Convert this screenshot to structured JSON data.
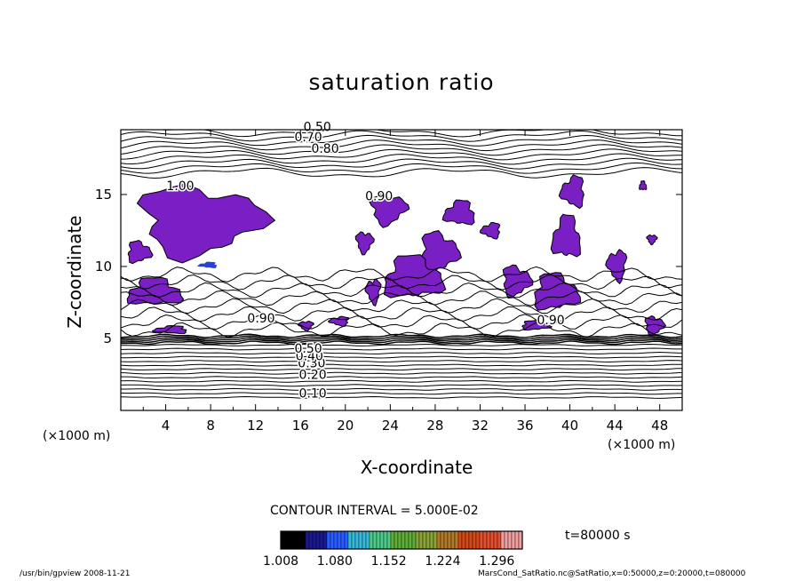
{
  "chart_data": {
    "type": "contour",
    "title": "saturation ratio",
    "xlabel": "X-coordinate",
    "ylabel": "Z-coordinate",
    "x_unit": "(×1000 m)",
    "y_unit": "(×1000 m)",
    "xlim": [
      0,
      50
    ],
    "ylim": [
      0,
      19.5
    ],
    "x_ticks": [
      4,
      8,
      12,
      16,
      20,
      24,
      28,
      32,
      36,
      40,
      44,
      48
    ],
    "y_ticks": [
      5,
      10,
      15
    ],
    "contour_interval_text": "CONTOUR INTERVAL = 5.000E-02",
    "time_text": "t=80000 s",
    "shaded_regions_color": "#7a1fc4",
    "contour_labels": [
      {
        "text": "0.10",
        "x": 17.1,
        "z": 0.9
      },
      {
        "text": "0.20",
        "x": 17.1,
        "z": 2.2
      },
      {
        "text": "0.30",
        "x": 17.0,
        "z": 3.0
      },
      {
        "text": "0.40",
        "x": 16.8,
        "z": 3.5
      },
      {
        "text": "0.50",
        "x": 16.7,
        "z": 4.0
      },
      {
        "text": "0.90",
        "x": 12.5,
        "z": 6.1
      },
      {
        "text": "0.90",
        "x": 23.0,
        "z": 14.6
      },
      {
        "text": "0.90",
        "x": 38.3,
        "z": 6.0
      },
      {
        "text": "1.00",
        "x": 5.3,
        "z": 15.3
      },
      {
        "text": "0.80",
        "x": 18.2,
        "z": 17.9
      },
      {
        "text": "0.70",
        "x": 16.7,
        "z": 18.7
      },
      {
        "text": "0.50",
        "x": 17.5,
        "z": 19.4
      }
    ],
    "colorbar": {
      "ticks": [
        "1.008",
        "1.080",
        "1.152",
        "1.224",
        "1.296"
      ],
      "range": [
        1.008,
        1.33
      ],
      "colors": [
        "#000000",
        "#1a1a8c",
        "#2a5cff",
        "#39b9d8",
        "#4fc98a",
        "#5fae3a",
        "#8aa23a",
        "#b07a2a",
        "#d04a1a",
        "#e05030",
        "#f0a0a0"
      ]
    }
  },
  "footer": {
    "left": "/usr/bin/gpview   2008-11-21",
    "right": "MarsCond_SatRatio.nc@SatRatio,x=0:50000,z=0:20000,t=080000"
  }
}
